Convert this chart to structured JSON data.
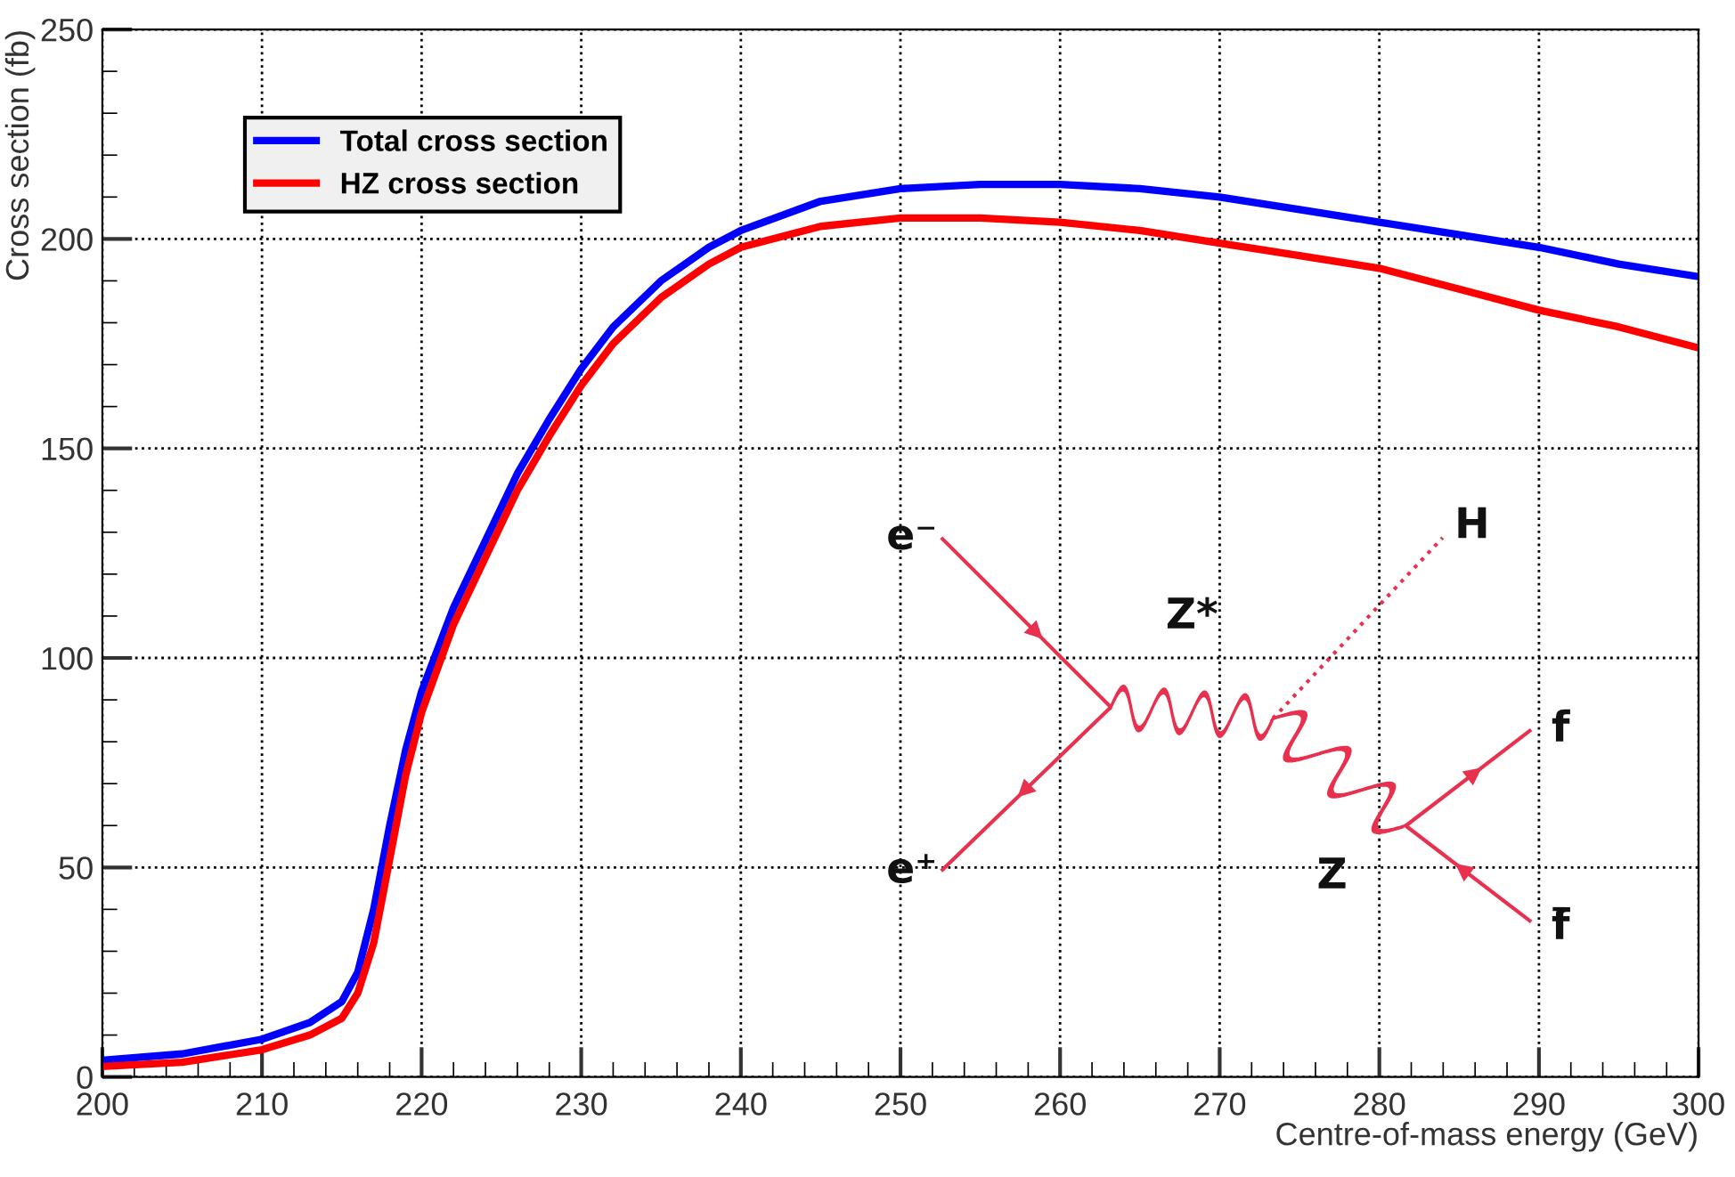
{
  "chart_data": {
    "type": "line",
    "xlabel": "Centre-of-mass energy (GeV)",
    "ylabel": "Cross section (fb)",
    "x": [
      200,
      205,
      210,
      213,
      215,
      216,
      217,
      218,
      219,
      220,
      222,
      224,
      226,
      228,
      230,
      232,
      235,
      238,
      240,
      245,
      250,
      255,
      260,
      265,
      270,
      275,
      280,
      285,
      290,
      295,
      300
    ],
    "series": [
      {
        "name": "Total cross section",
        "color": "#0000ff",
        "values": [
          4,
          5.5,
          9,
          13,
          18,
          25,
          40,
          60,
          78,
          92,
          112,
          128,
          144,
          157,
          169,
          179,
          190,
          198,
          202,
          209,
          212,
          213,
          213,
          212,
          210,
          207,
          204,
          201,
          198,
          194,
          191
        ]
      },
      {
        "name": "HZ cross section",
        "color": "#ff0000",
        "values": [
          2.5,
          3.5,
          6.5,
          10,
          14,
          20,
          32,
          52,
          72,
          87,
          108,
          124,
          140,
          153,
          165,
          175,
          186,
          194,
          198,
          203,
          205,
          205,
          204,
          202,
          199,
          196,
          193,
          188,
          183,
          179,
          174
        ]
      }
    ],
    "xlim": [
      200,
      300
    ],
    "xticks": [
      200,
      210,
      220,
      230,
      240,
      250,
      260,
      270,
      280,
      290,
      300
    ],
    "ylim": [
      0,
      250
    ],
    "yticks": [
      0,
      50,
      100,
      150,
      200,
      250
    ],
    "grid": true,
    "legend": "top left",
    "marker": "none",
    "line_style": "solid",
    "annotations": [
      "e⁻",
      "e⁺",
      "Z*",
      "H",
      "f",
      "f̄",
      "Z"
    ]
  }
}
